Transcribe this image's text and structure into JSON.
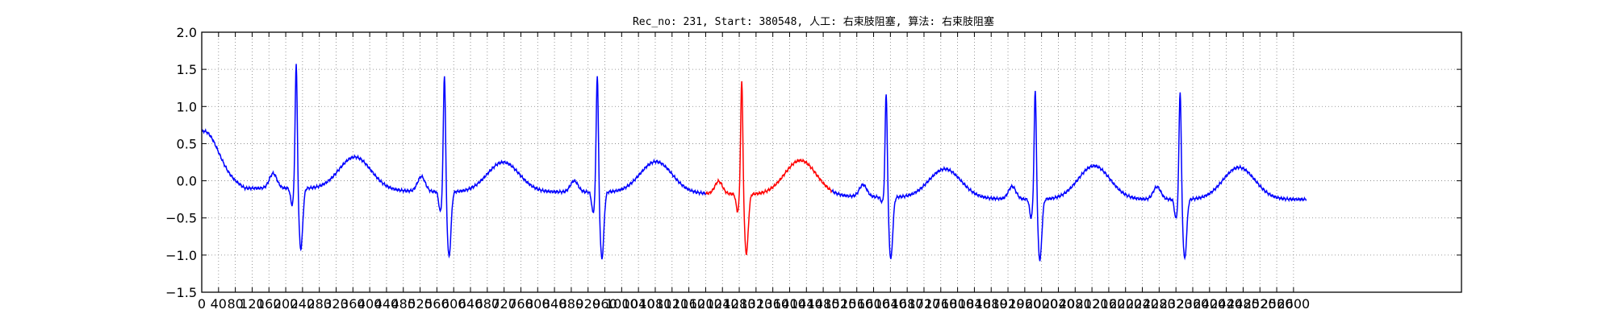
{
  "chart_data": {
    "type": "line",
    "title": "Rec_no: 231, Start: 380548, 人工: 右束肢阻塞, 算法: 右束肢阻塞",
    "xlabel": "",
    "ylabel": "",
    "xlim": [
      0,
      3000
    ],
    "ylim": [
      -1.5,
      2.0
    ],
    "grid": true,
    "grid_style": "dotted",
    "x_tick_step": 40,
    "x_tick_labels": [
      "0",
      "40",
      "80",
      "120",
      "160",
      "200",
      "240",
      "280",
      "320",
      "360",
      "400",
      "440",
      "480",
      "520",
      "560",
      "600",
      "640",
      "680",
      "720",
      "760",
      "800",
      "840",
      "880",
      "920",
      "960",
      "1000",
      "1040",
      "1080",
      "1120",
      "1160",
      "1200",
      "1240",
      "1280",
      "1320",
      "1360",
      "1400",
      "1440",
      "1480",
      "1520",
      "1560",
      "1600",
      "1640",
      "1680",
      "1720",
      "1760",
      "1800",
      "1840",
      "1880",
      "1920",
      "1960",
      "2000",
      "2040",
      "2080",
      "2120",
      "2160",
      "2200",
      "2240",
      "2280",
      "2320",
      "2360",
      "2400",
      "2440",
      "2480",
      "2520",
      "2560",
      "2600"
    ],
    "y_ticks": [
      2.0,
      1.5,
      1.0,
      0.5,
      0.0,
      -0.5,
      -1.0,
      -1.5
    ],
    "y_tick_labels": [
      "2.0",
      "1.5",
      "1.0",
      "0.5",
      "0.0",
      "−0.5",
      "−1.0",
      "−1.5"
    ],
    "highlight": {
      "start": 1200,
      "end": 1500
    },
    "colors": {
      "signal": "#0000ff",
      "highlight": "#ff0000",
      "grid": "#7f7f7f",
      "axes": "#000000"
    },
    "beats": [
      {
        "r": 225,
        "r_amp": 1.7,
        "s_amp": -0.92,
        "q_amp": -0.38,
        "p_amp": 0.05,
        "t_amp": 0.34,
        "base": -0.1
      },
      {
        "r": 578,
        "r_amp": 1.62,
        "s_amp": -1.02,
        "q_amp": -0.48,
        "p_amp": 0.0,
        "t_amp": 0.25,
        "base": -0.15
      },
      {
        "r": 942,
        "r_amp": 1.62,
        "s_amp": -1.05,
        "q_amp": -0.5,
        "p_amp": -0.05,
        "t_amp": 0.27,
        "base": -0.15
      },
      {
        "r": 1286,
        "r_amp": 1.56,
        "s_amp": -0.98,
        "q_amp": -0.47,
        "p_amp": -0.06,
        "t_amp": 0.29,
        "base": -0.18
      },
      {
        "r": 1630,
        "r_amp": 1.43,
        "s_amp": -1.05,
        "q_amp": -0.3,
        "p_amp": -0.11,
        "t_amp": 0.17,
        "base": -0.22
      },
      {
        "r": 1985,
        "r_amp": 1.5,
        "s_amp": -1.07,
        "q_amp": -0.56,
        "p_amp": -0.13,
        "t_amp": 0.2,
        "base": -0.25
      },
      {
        "r": 2330,
        "r_amp": 1.5,
        "s_amp": -1.05,
        "q_amp": -0.57,
        "p_amp": -0.13,
        "t_amp": 0.18,
        "base": -0.25
      }
    ],
    "start_value": 0.28,
    "end_x": 2630,
    "end_value": -0.25
  }
}
